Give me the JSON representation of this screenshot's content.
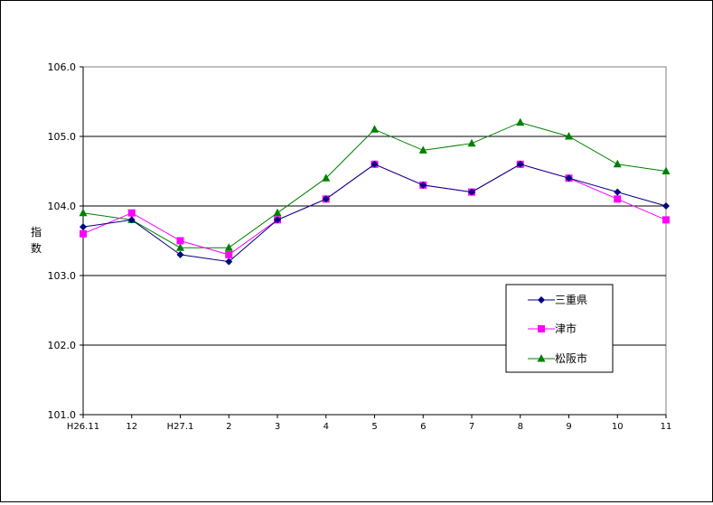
{
  "chart_data": {
    "type": "line",
    "ylabel": "指数",
    "ylim": [
      101.0,
      106.0
    ],
    "ytick_labels": [
      "101.0",
      "102.0",
      "103.0",
      "104.0",
      "105.0",
      "106.0"
    ],
    "categories": [
      "H26.11",
      "12",
      "H27.1",
      "2",
      "3",
      "4",
      "5",
      "6",
      "7",
      "8",
      "9",
      "10",
      "11"
    ],
    "grid": true,
    "legend_position": "bottom-right",
    "series": [
      {
        "name": "三重県",
        "color": "#000080",
        "marker": "diamond",
        "values": [
          103.7,
          103.8,
          103.3,
          103.2,
          103.8,
          104.1,
          104.6,
          104.3,
          104.2,
          104.6,
          104.4,
          104.2,
          104.0
        ]
      },
      {
        "name": "津市",
        "color": "#FF00FF",
        "marker": "square",
        "values": [
          103.6,
          103.9,
          103.5,
          103.3,
          103.8,
          104.1,
          104.6,
          104.3,
          104.2,
          104.6,
          104.4,
          104.1,
          103.8
        ]
      },
      {
        "name": "松阪市",
        "color": "#008000",
        "marker": "triangle",
        "values": [
          103.9,
          103.8,
          103.4,
          103.4,
          103.9,
          104.4,
          105.1,
          104.8,
          104.9,
          105.2,
          105.0,
          104.6,
          104.5
        ]
      }
    ]
  }
}
